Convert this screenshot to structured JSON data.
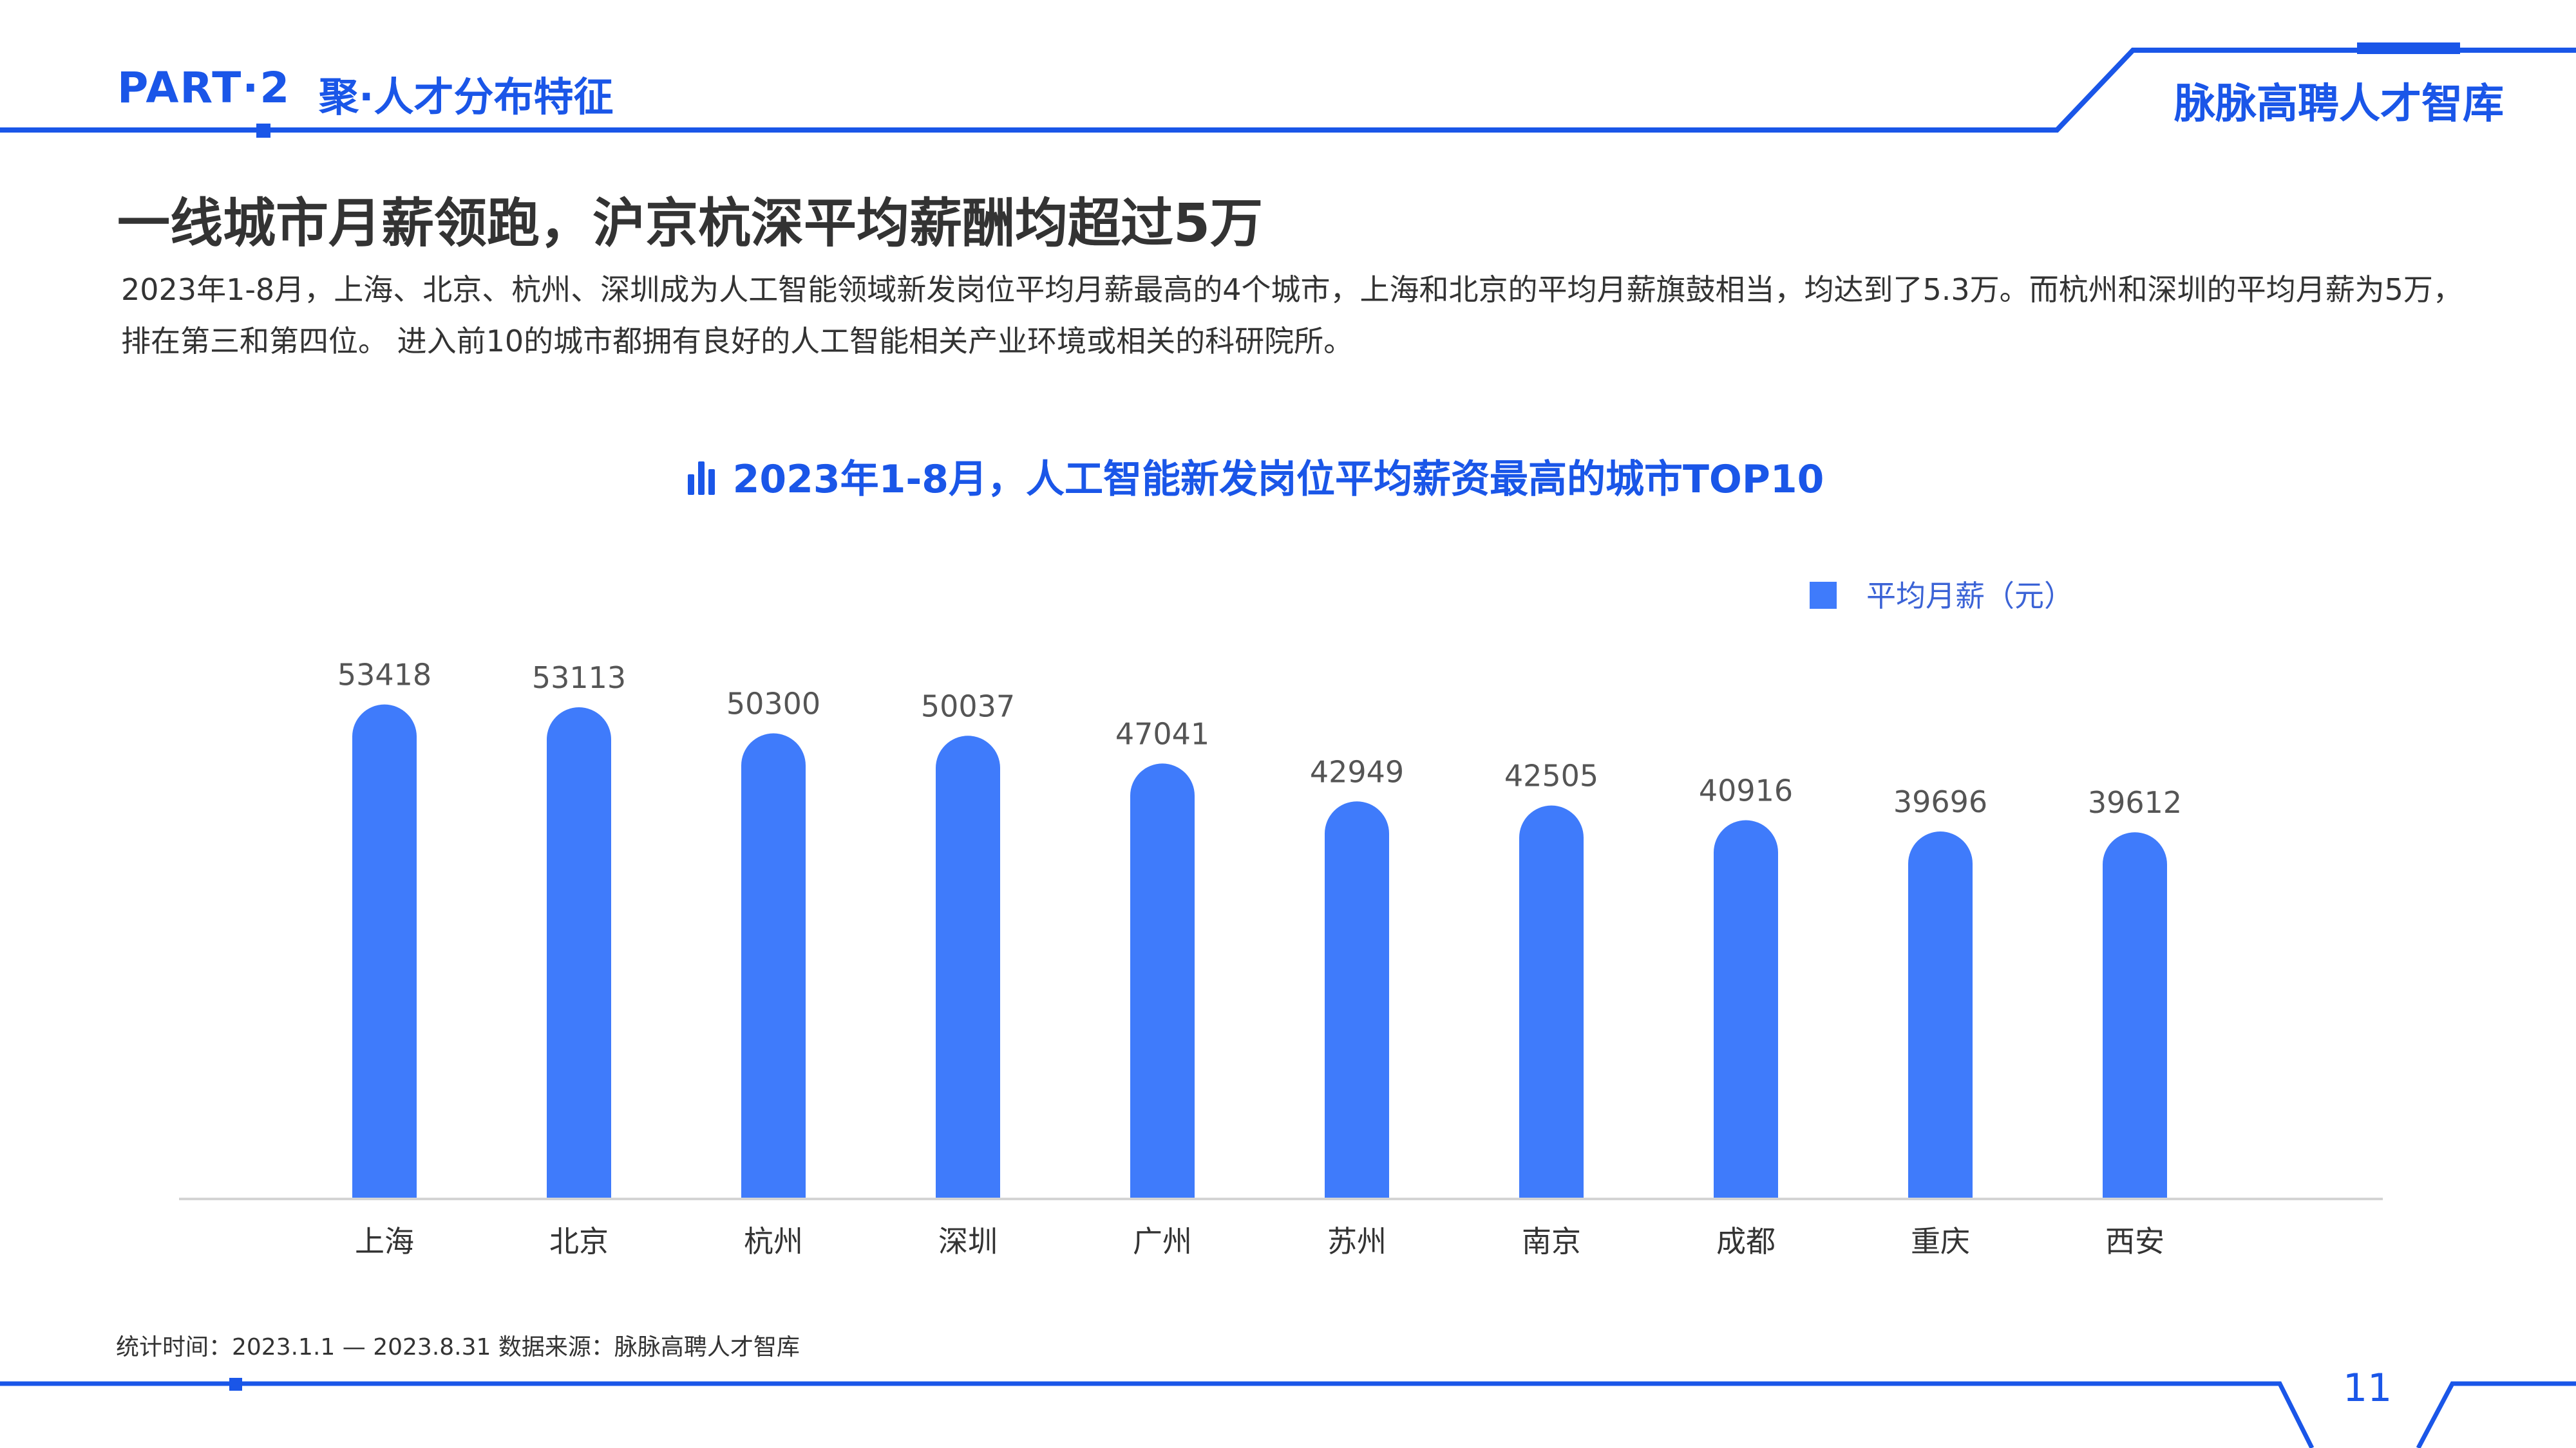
{
  "header": {
    "part_label": "PART·2",
    "part_subtitle": "聚·人才分布特征",
    "brand": "脉脉高聘人才智库"
  },
  "headline": "一线城市月薪领跑，沪京杭深平均薪酬均超过5万",
  "description": "2023年1-8月，上海、北京、杭州、深圳成为人工智能领域新发岗位平均月薪最高的4个城市，上海和北京的平均月薪旗鼓相当，均达到了5.3万。而杭州和深圳的平均月薪为5万，排在第三和第四位。 进入前10的城市都拥有良好的人工智能相关产业环境或相关的科研院所。",
  "chart_title_icon": "bar-chart-icon",
  "footnote": "统计时间：2023.1.1 — 2023.8.31   数据来源：脉脉高聘人才智库",
  "page_number": "11",
  "colors": {
    "brand_blue": "#1a56e8",
    "bar": "#3f7bfb",
    "text_dark": "#333333",
    "value_label": "#555555"
  },
  "chart_data": {
    "type": "bar",
    "title": "2023年1-8月，人工智能新发岗位平均薪资最高的城市TOP10",
    "categories": [
      "上海",
      "北京",
      "杭州",
      "深圳",
      "广州",
      "苏州",
      "南京",
      "成都",
      "重庆",
      "西安"
    ],
    "series": [
      {
        "name": "平均月薪（元）",
        "values": [
          53418,
          53113,
          50300,
          50037,
          47041,
          42949,
          42505,
          40916,
          39696,
          39612
        ]
      }
    ],
    "xlabel": "",
    "ylabel": "",
    "ylim": [
      0,
      60000
    ],
    "grid": false,
    "legend": "top-right",
    "data_labels": true,
    "bar_style": "rounded-top"
  }
}
